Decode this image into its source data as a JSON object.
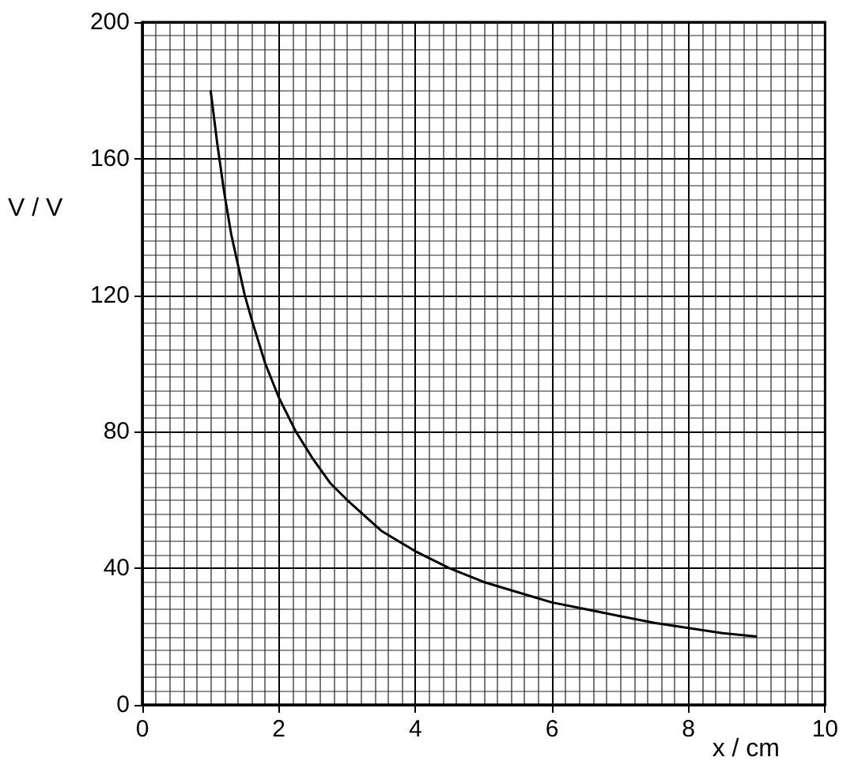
{
  "chart_data": {
    "type": "line",
    "xlabel": "x / cm",
    "ylabel": "V / V",
    "x": [
      1,
      1.1,
      1.2,
      1.3,
      1.4,
      1.5,
      1.6,
      1.8,
      2,
      2.25,
      2.5,
      2.75,
      3,
      3.5,
      4,
      4.5,
      5,
      5.5,
      6,
      6.5,
      7,
      7.5,
      8,
      8.5,
      9
    ],
    "series": [
      {
        "color": "#000000",
        "values": [
          180,
          164,
          150,
          138,
          129,
          120,
          113,
          100,
          90,
          80,
          72,
          65,
          60,
          51,
          45,
          40,
          36,
          33,
          30,
          28,
          26,
          24,
          22.5,
          21,
          20
        ]
      }
    ],
    "xlim": [
      0,
      10
    ],
    "xticks": [
      0,
      2,
      4,
      6,
      8,
      10
    ],
    "ylim": [
      0,
      200
    ],
    "yticks": [
      0,
      40,
      80,
      120,
      160,
      200
    ],
    "grid": true,
    "marker": "none",
    "line_style": "solid"
  }
}
